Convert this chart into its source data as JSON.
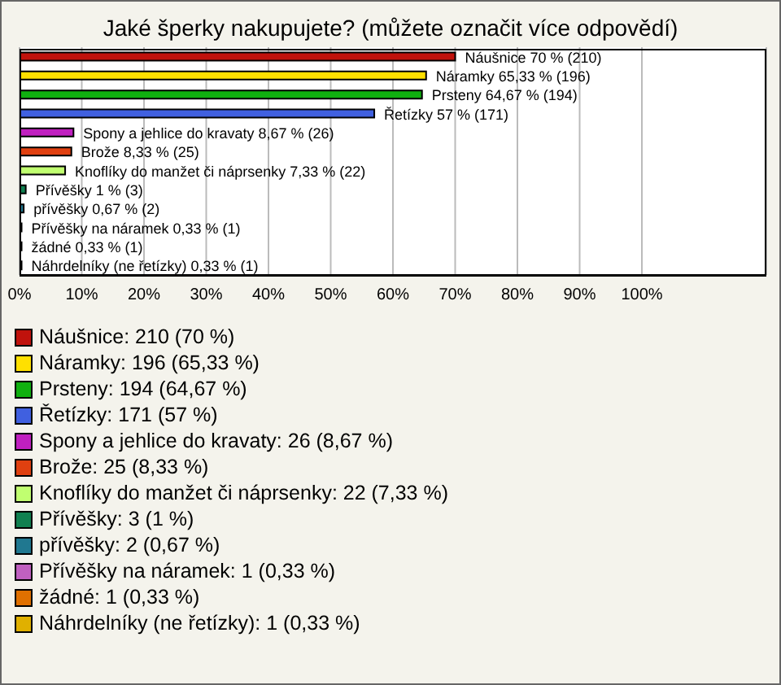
{
  "chart_data": {
    "type": "bar",
    "orientation": "horizontal",
    "title": "Jaké šperky nakupujete? (můžete označit více odpovědí)",
    "categories": [
      null,
      null,
      null,
      null,
      null,
      null,
      null,
      null,
      null,
      null,
      null,
      null
    ],
    "values": [
      70,
      65.33,
      64.67,
      57,
      8.67,
      8.33,
      7.33,
      1,
      0.67,
      0.33,
      0.33,
      0.33
    ],
    "colors": [
      "#c0120c",
      "#ffe000",
      "#10b010",
      "#4060e0",
      "#c020c0",
      "#e04010",
      "#c0ff70",
      "#108050",
      "#207890",
      "#c060c0",
      "#e07000",
      "#e0b000"
    ],
    "value_labels": [
      "Náušnice 70 % (210)",
      "Náramky 65,33 % (196)",
      "Prsteny 64,67 % (194)",
      "Řetízky 57 % (171)",
      "Spony a jehlice do kravaty 8,67 % (26)",
      "Brože 8,33 % (25)",
      "Knoflíky do manžet či náprsenky 7,33 % (22)",
      "Přívěšky 1 % (3)",
      "přívěšky 0,67 % (2)",
      "Přívěšky na náramek 0,33 % (1)",
      "žádné 0,33 % (1)",
      "Náhrdelníky (ne řetízky) 0,33 % (1)"
    ],
    "annotations": [
      "Náušnice: 210 (70 %)",
      "Náramky: 196 (65,33 %)",
      "Prsteny: 194 (64,67 %)",
      "Řetízky: 171 (57 %)",
      "Spony a jehlice do kravaty: 26 (8,67 %)",
      "Brože: 25 (8,33 %)",
      "Knoflíky do manžet či náprsenky: 22 (7,33 %)",
      "Přívěšky: 3 (1 %)",
      "přívěšky: 2 (0,67 %)",
      "Přívěšky na náramek: 1 (0,33 %)",
      "žádné: 1 (0,33 %)",
      "Náhrdelníky (ne řetízky): 1 (0,33 %)"
    ],
    "xlim": [
      0,
      120
    ],
    "xticks": [
      {
        "value": 0,
        "label": "0%"
      },
      {
        "value": 10,
        "label": "10%"
      },
      {
        "value": 20,
        "label": "20%"
      },
      {
        "value": 30,
        "label": "30%"
      },
      {
        "value": 40,
        "label": "40%"
      },
      {
        "value": 50,
        "label": "50%"
      },
      {
        "value": 60,
        "label": "60%"
      },
      {
        "value": 70,
        "label": "70%"
      },
      {
        "value": 80,
        "label": "80%"
      },
      {
        "value": 90,
        "label": "90%"
      },
      {
        "value": 100,
        "label": "100%"
      }
    ],
    "grid": "x",
    "tick_labels": "x"
  }
}
